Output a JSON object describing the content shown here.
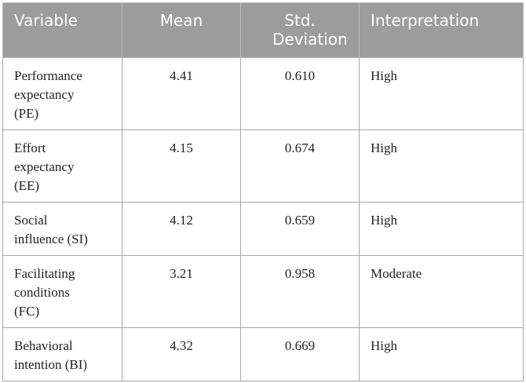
{
  "table": {
    "header": [
      "Variable",
      "Mean",
      "Std. Deviation",
      "Interpretation"
    ],
    "rows": [
      [
        "Performance expectancy (PE)",
        "4.41",
        "0.610",
        "High"
      ],
      [
        "Effort expectancy (EE)",
        "4.15",
        "0.674",
        "High"
      ],
      [
        "Social influence (SI)",
        "4.12",
        "0.659",
        "High"
      ],
      [
        "Facilitating conditions (FC)",
        "3.21",
        "0.958",
        "Moderate"
      ],
      [
        "Behavioral intention (BI)",
        "4.32",
        "0.669",
        "High"
      ]
    ]
  }
}
